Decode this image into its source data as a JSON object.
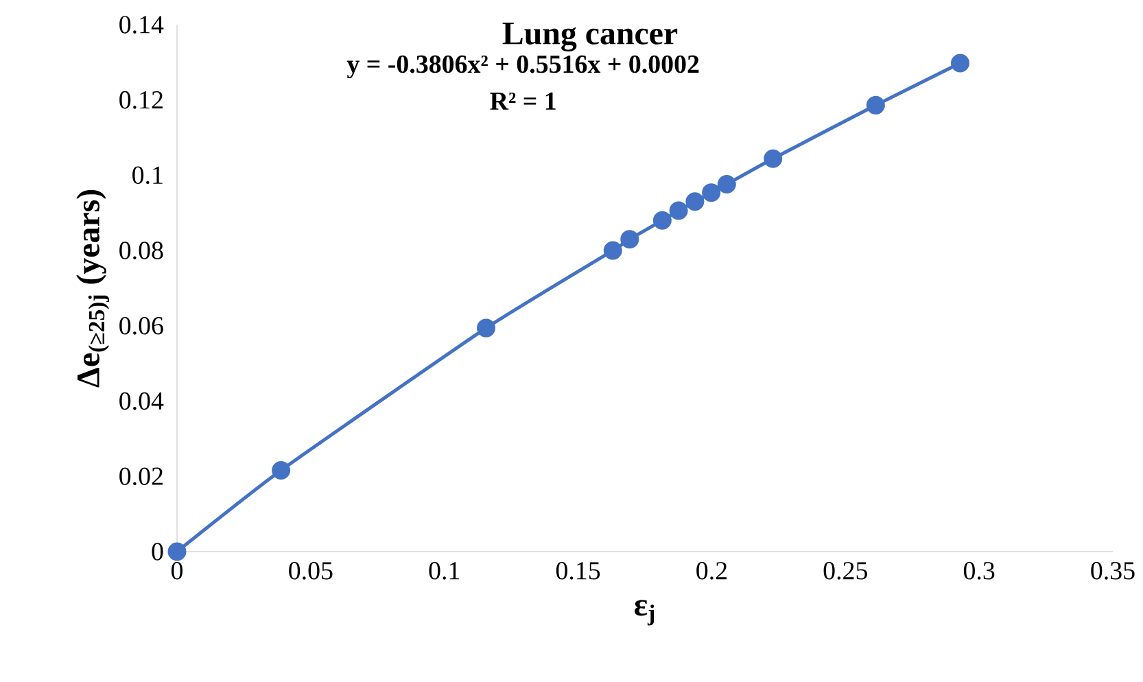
{
  "chart_data": {
    "type": "line",
    "title": "Lung cancer",
    "xlabel": "ε$_{j}$",
    "ylabel": "Δe$_{(≥25)j}$ (years)",
    "annotations": [
      "y = -0.3806x² + 0.5516x + 0.0002",
      "R² = 1"
    ],
    "x": [
      0,
      0.0389,
      0.1156,
      0.163,
      0.1693,
      0.1815,
      0.1876,
      0.1937,
      0.1998,
      0.2056,
      0.2229,
      0.2613,
      0.2929
    ],
    "series": [
      {
        "color": "#4472c4",
        "values": [
          0,
          0.0216,
          0.0594,
          0.08,
          0.083,
          0.088,
          0.0906,
          0.093,
          0.0954,
          0.0976,
          0.1044,
          0.1186,
          0.1298
        ]
      }
    ],
    "xlim": [
      0,
      0.35
    ],
    "xticks": [
      0,
      0.05,
      0.1,
      0.15,
      0.2,
      0.25,
      0.3,
      0.35
    ],
    "ylim": [
      0,
      0.14
    ],
    "yticks": [
      0,
      0.02,
      0.04,
      0.06,
      0.08,
      0.1,
      0.12,
      0.14
    ],
    "marker": "circle",
    "line_style": "solid",
    "grid": false
  }
}
